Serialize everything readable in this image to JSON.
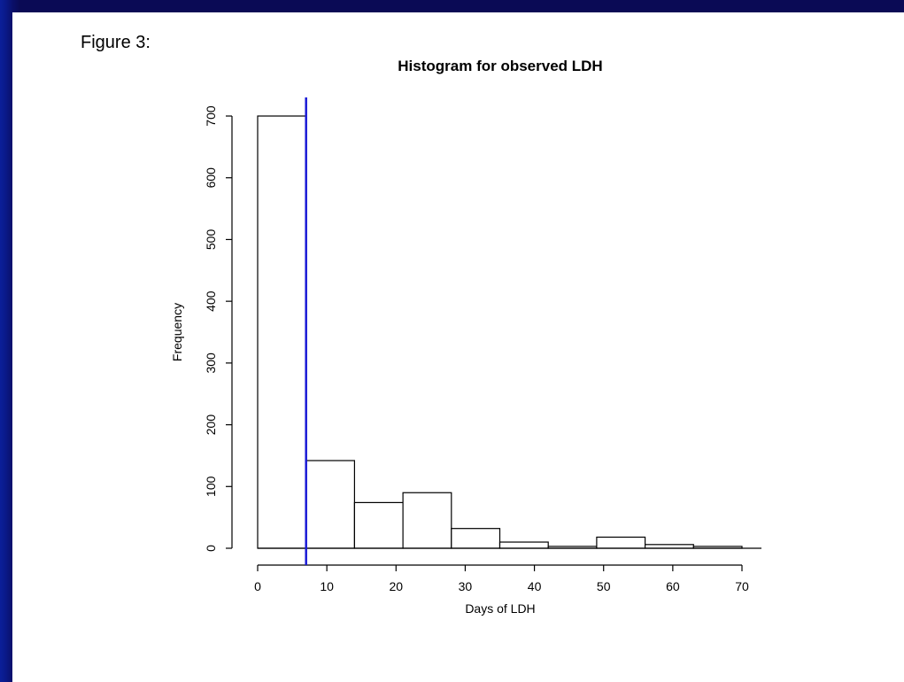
{
  "slide": {
    "figure_label": "Figure 3:"
  },
  "colors": {
    "background": "#0a0a55",
    "reference_line": "#1a1ad6",
    "bar_fill": "#ffffff",
    "bar_stroke": "#000000"
  },
  "chart_data": {
    "type": "bar",
    "subtype": "histogram",
    "title": "Histogram for observed LDH",
    "xlabel": "Days of LDH",
    "ylabel": "Frequency",
    "bins": [
      {
        "x0": 0,
        "x1": 7,
        "count": 700
      },
      {
        "x0": 7,
        "x1": 14,
        "count": 142
      },
      {
        "x0": 14,
        "x1": 21,
        "count": 74
      },
      {
        "x0": 21,
        "x1": 28,
        "count": 90
      },
      {
        "x0": 28,
        "x1": 35,
        "count": 32
      },
      {
        "x0": 35,
        "x1": 42,
        "count": 10
      },
      {
        "x0": 42,
        "x1": 49,
        "count": 3
      },
      {
        "x0": 49,
        "x1": 56,
        "count": 18
      },
      {
        "x0": 56,
        "x1": 63,
        "count": 6
      },
      {
        "x0": 63,
        "x1": 70,
        "count": 3
      }
    ],
    "x_ticks": [
      0,
      10,
      20,
      30,
      40,
      50,
      60,
      70
    ],
    "y_ticks": [
      0,
      100,
      200,
      300,
      400,
      500,
      600,
      700
    ],
    "xlim": [
      0,
      72
    ],
    "ylim": [
      0,
      700
    ],
    "reference_line": {
      "orientation": "vertical",
      "x": 7
    },
    "grid": false
  }
}
